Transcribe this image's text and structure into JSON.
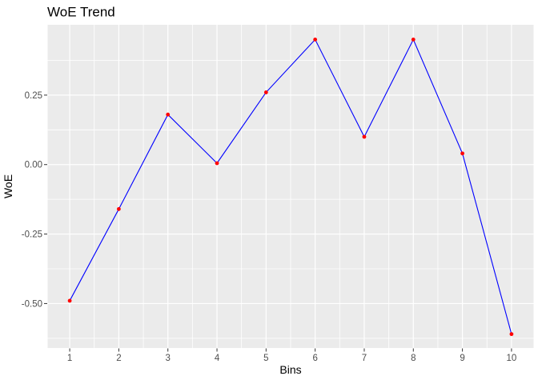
{
  "chart_data": {
    "type": "line",
    "title": "WoE Trend",
    "xlabel": "Bins",
    "ylabel": "WoE",
    "x": [
      1,
      2,
      3,
      4,
      5,
      6,
      7,
      8,
      9,
      10
    ],
    "y": [
      -0.49,
      -0.16,
      0.18,
      0.005,
      0.26,
      0.45,
      0.1,
      0.45,
      0.04,
      -0.61
    ],
    "x_ticks": [
      1,
      2,
      3,
      4,
      5,
      6,
      7,
      8,
      9,
      10
    ],
    "x_tick_labels": [
      "1",
      "2",
      "3",
      "4",
      "5",
      "6",
      "7",
      "8",
      "9",
      "10"
    ],
    "x_minor_ticks": [
      1.5,
      2.5,
      3.5,
      4.5,
      5.5,
      6.5,
      7.5,
      8.5,
      9.5
    ],
    "y_ticks": [
      0.25,
      0.0,
      -0.25,
      -0.5
    ],
    "y_tick_labels": [
      "0.25",
      "0.00",
      "-0.25",
      "-0.50"
    ],
    "y_minor_ticks": [
      0.375,
      0.125,
      -0.125,
      -0.375,
      -0.625
    ],
    "xlim": [
      0.55,
      10.45
    ],
    "ylim": [
      -0.66,
      0.503
    ],
    "grid": true,
    "legend": false,
    "colors": {
      "background": "#FFFFFF",
      "panel_bg": "#EBEBEB",
      "grid": "#FFFFFF",
      "line": "#0000FF",
      "point": "#FF0000",
      "tick_mark": "#333333",
      "tick_label": "#4D4D4D",
      "title": "#000000",
      "axis_title": "#000000"
    }
  }
}
